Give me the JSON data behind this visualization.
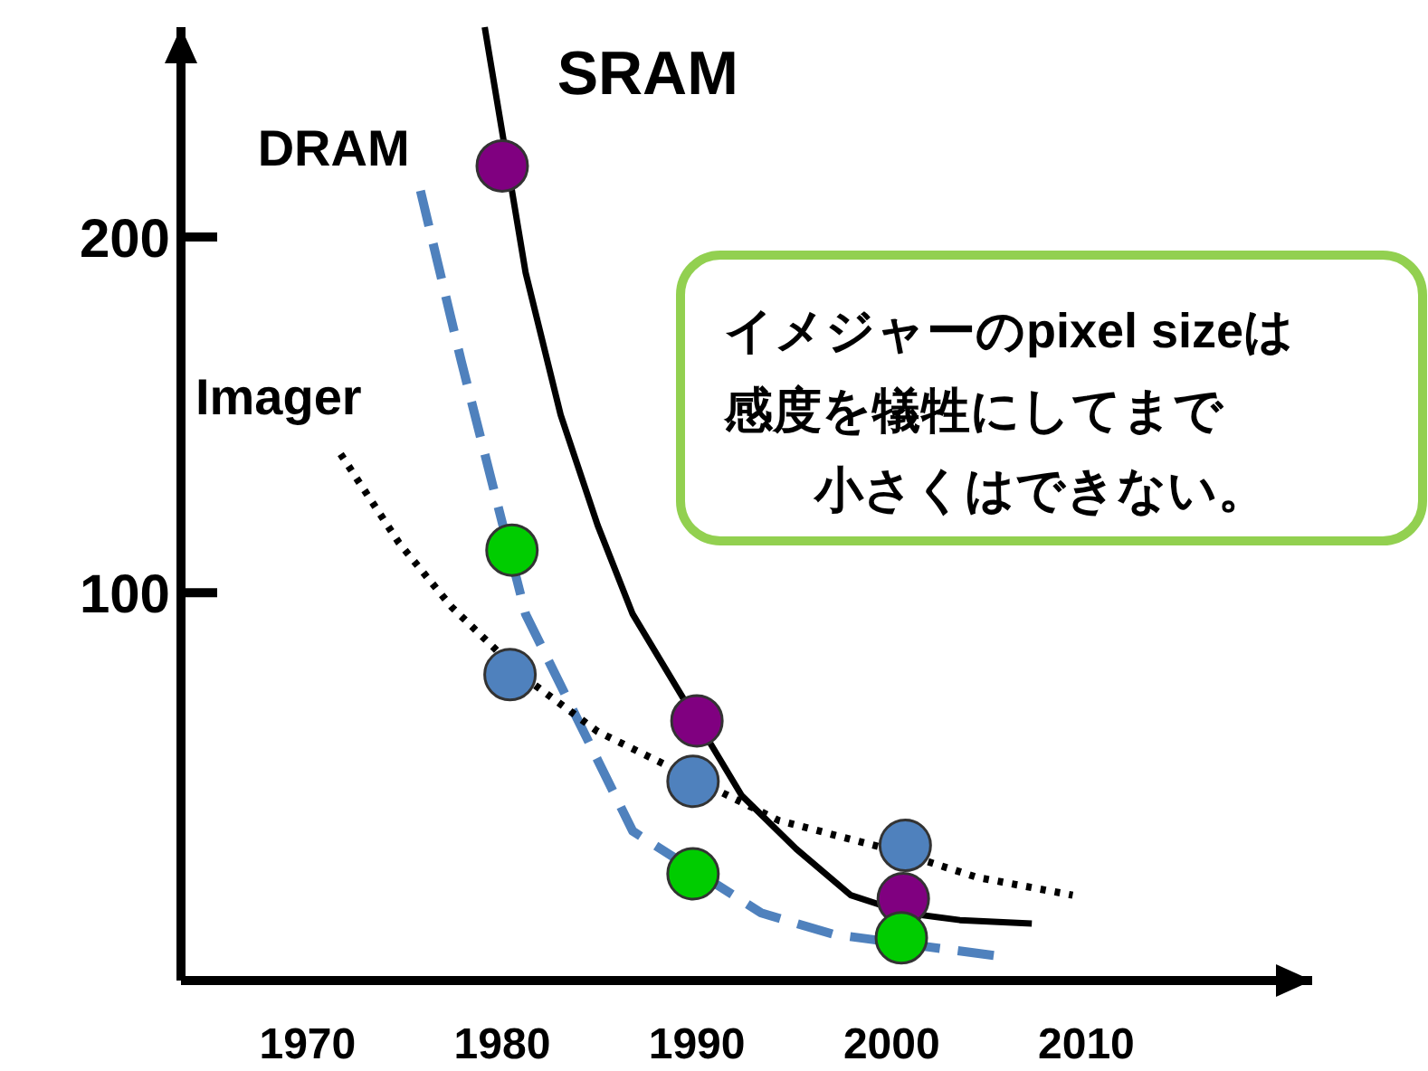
{
  "chart_data": {
    "type": "line",
    "xlim": [
      1963.5,
      2021.6
    ],
    "ylim": [
      -9,
      259
    ],
    "xticks": [
      1970,
      1980,
      1990,
      2000,
      2010
    ],
    "yticks": [
      100,
      200
    ],
    "grid": false,
    "annotations": [
      "イメジャーのpixel sizeは",
      "感度を犠牲にしてまで",
      "小さくはできない。"
    ],
    "series": [
      {
        "name": "SRAM",
        "line_style": "solid",
        "color": "#000000",
        "x": [
          1979.1,
          1981.2,
          1983,
          1984.9,
          1986.7,
          1992.3,
          1995.1,
          1997.9,
          2000.7,
          2003.5,
          2007.2
        ],
        "values": [
          259,
          190,
          150,
          119,
          94,
          43,
          28,
          15,
          10,
          8,
          7
        ]
      },
      {
        "name": "DRAM",
        "line_style": "dashed",
        "color": "#4f81bd",
        "x": [
          1975.8,
          1977.9,
          1979.8,
          1981.2,
          1983,
          1984.9,
          1986.7,
          1993.3,
          1997,
          2005.3
        ],
        "values": [
          213,
          165,
          124,
          94,
          74,
          53,
          33,
          10,
          4,
          -2
        ]
      },
      {
        "name": "Imager",
        "line_style": "dotted",
        "color": "#000000",
        "x": [
          1971.7,
          1974.7,
          1977.4,
          1981.2,
          1984.9,
          1994.2,
          1999.8,
          2004.4,
          2009.3
        ],
        "values": [
          139,
          114,
          96,
          76,
          61,
          36,
          28,
          20,
          15
        ]
      },
      {
        "type": "scatter",
        "marker": "circle",
        "color": "#800080",
        "x": [
          1980,
          1990,
          2000.6
        ],
        "values": [
          220,
          64,
          14
        ]
      },
      {
        "type": "scatter",
        "marker": "circle",
        "color": "#4f81bd",
        "x": [
          1980.4,
          1989.8,
          2000.7
        ],
        "values": [
          77,
          47,
          29
        ]
      },
      {
        "type": "scatter",
        "marker": "circle",
        "color": "#00cc00",
        "x": [
          1980.5,
          1989.8,
          2000.5
        ],
        "values": [
          112,
          21,
          3
        ]
      }
    ]
  }
}
